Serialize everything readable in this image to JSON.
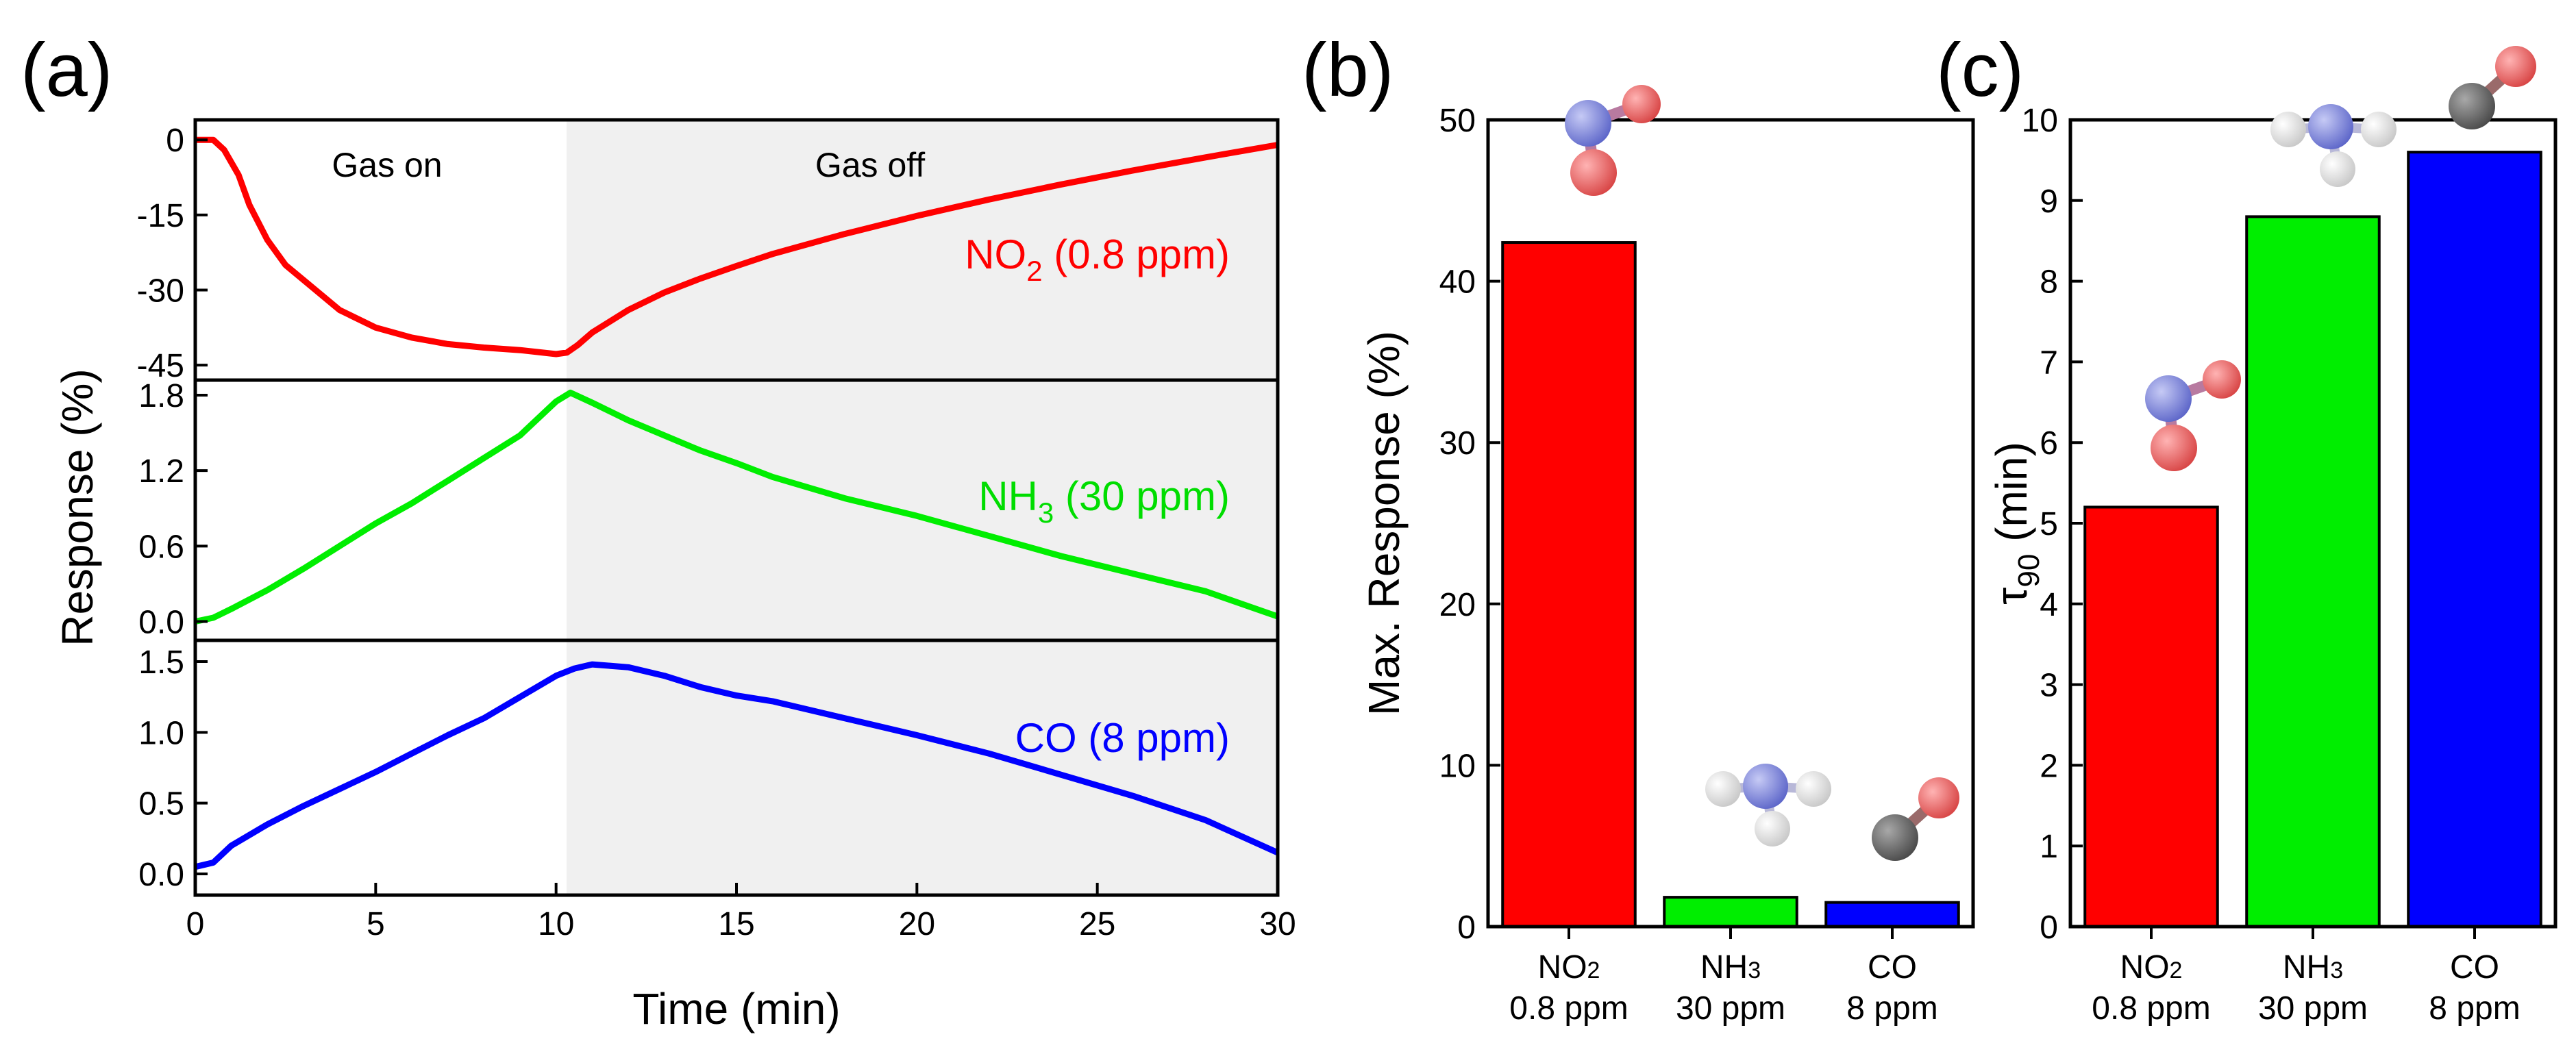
{
  "panel_labels": [
    "(a)",
    "(b)",
    "(c)"
  ],
  "colors": {
    "no2": "#ff0000",
    "nh3": "#00ee00",
    "co": "#0000ff",
    "gas_off_shade": "#f0f0f0",
    "n_atom": "#7f86e0",
    "o_atom": "#ec6c6c",
    "c_atom": "#6a6a6a",
    "h_atom": "#f0f0f0"
  },
  "chart_data": [
    {
      "type": "line",
      "panel": "(a)",
      "ylabel": "Response (%)",
      "xlabel": "Time (min)",
      "xlim": [
        0,
        30
      ],
      "xticks": [
        "0",
        "5",
        "10",
        "15",
        "20",
        "25",
        "30"
      ],
      "xtick_values": [
        0,
        5,
        10,
        15,
        20,
        25,
        30
      ],
      "gas_off_start": 10.3,
      "annotations": {
        "gas_on": "Gas on",
        "gas_off": "Gas off"
      },
      "series": [
        {
          "name": "NO2 (0.8 ppm)",
          "label_main": "NO",
          "label_sub": "2",
          "label_tail": " (0.8 ppm)",
          "color": "#ff0000",
          "ylim": [
            -48,
            4
          ],
          "yticks": [
            "0",
            "-15",
            "-30",
            "-45"
          ],
          "ytick_values": [
            0,
            -15,
            -30,
            -45
          ],
          "x": [
            0,
            0.5,
            0.8,
            1.2,
            1.5,
            2,
            2.5,
            3,
            4,
            5,
            6,
            7,
            8,
            9,
            10,
            10.3,
            10.6,
            11,
            12,
            13,
            14,
            15,
            16,
            18,
            20,
            22,
            24,
            26,
            28,
            30
          ],
          "y": [
            0,
            0,
            -2,
            -7,
            -13,
            -20,
            -25,
            -28,
            -34,
            -37.5,
            -39.5,
            -40.8,
            -41.5,
            -42,
            -42.8,
            -42.5,
            -41,
            -38.5,
            -34,
            -30.5,
            -27.7,
            -25.2,
            -22.8,
            -18.8,
            -15.2,
            -11.9,
            -8.9,
            -6.1,
            -3.5,
            -1
          ]
        },
        {
          "name": "NH3 (30 ppm)",
          "label_main": "NH",
          "label_sub": "3",
          "label_tail": " (30 ppm)",
          "color": "#00ee00",
          "ylim": [
            -0.15,
            1.92
          ],
          "yticks": [
            "0.0",
            "0.6",
            "1.2",
            "1.8"
          ],
          "ytick_values": [
            0,
            0.6,
            1.2,
            1.8
          ],
          "x": [
            0,
            0.5,
            1,
            2,
            3,
            4,
            5,
            6,
            7,
            8,
            9,
            10,
            10.4,
            11,
            12,
            13,
            14,
            15,
            16,
            18,
            20,
            22,
            24,
            26,
            28,
            29,
            30
          ],
          "y": [
            0,
            0.03,
            0.1,
            0.25,
            0.42,
            0.6,
            0.78,
            0.94,
            1.12,
            1.3,
            1.48,
            1.75,
            1.82,
            1.74,
            1.6,
            1.48,
            1.36,
            1.26,
            1.15,
            0.98,
            0.84,
            0.68,
            0.52,
            0.38,
            0.24,
            0.14,
            0.04
          ]
        },
        {
          "name": "CO (8 ppm)",
          "label_main": "CO (8 ppm)",
          "label_sub": "",
          "label_tail": "",
          "color": "#0000ff",
          "ylim": [
            -0.15,
            1.65
          ],
          "yticks": [
            "0.0",
            "0.5",
            "1.0",
            "1.5"
          ],
          "ytick_values": [
            0,
            0.5,
            1,
            1.5
          ],
          "x": [
            0,
            0.5,
            1,
            2,
            3,
            4,
            5,
            6,
            7,
            8,
            9,
            10,
            10.5,
            11,
            12,
            13,
            14,
            15,
            16,
            18,
            20,
            22,
            24,
            26,
            28,
            30
          ],
          "y": [
            0.05,
            0.08,
            0.2,
            0.35,
            0.48,
            0.6,
            0.72,
            0.85,
            0.98,
            1.1,
            1.25,
            1.4,
            1.45,
            1.48,
            1.46,
            1.4,
            1.32,
            1.26,
            1.22,
            1.1,
            0.98,
            0.85,
            0.7,
            0.55,
            0.38,
            0.15
          ]
        }
      ]
    },
    {
      "type": "bar",
      "panel": "(b)",
      "ylabel": "Max. Response (%)",
      "ylim": [
        0,
        50
      ],
      "yticks": [
        "0",
        "10",
        "20",
        "30",
        "40",
        "50"
      ],
      "ytick_values": [
        0,
        10,
        20,
        30,
        40,
        50
      ],
      "categories": [
        {
          "gas_main": "NO",
          "gas_sub": "2",
          "conc": "0.8 ppm"
        },
        {
          "gas_main": "NH",
          "gas_sub": "3",
          "conc": "30 ppm"
        },
        {
          "gas_main": "CO",
          "gas_sub": "",
          "conc": "8 ppm"
        }
      ],
      "values": [
        42.4,
        1.82,
        1.5
      ],
      "colors": [
        "#ff0000",
        "#00ee00",
        "#0000ff"
      ]
    },
    {
      "type": "bar",
      "panel": "(c)",
      "ylabel_main": "τ",
      "ylabel_sub": "90",
      "ylabel_tail": " (min)",
      "ylim": [
        0,
        10
      ],
      "yticks": [
        "0",
        "1",
        "2",
        "3",
        "4",
        "5",
        "6",
        "7",
        "8",
        "9",
        "10"
      ],
      "ytick_values": [
        0,
        1,
        2,
        3,
        4,
        5,
        6,
        7,
        8,
        9,
        10
      ],
      "categories": [
        {
          "gas_main": "NO",
          "gas_sub": "2",
          "conc": "0.8 ppm"
        },
        {
          "gas_main": "NH",
          "gas_sub": "3",
          "conc": "30 ppm"
        },
        {
          "gas_main": "CO",
          "gas_sub": "",
          "conc": "8 ppm"
        }
      ],
      "values": [
        5.2,
        8.8,
        9.6
      ],
      "colors": [
        "#ff0000",
        "#00ee00",
        "#0000ff"
      ]
    }
  ]
}
